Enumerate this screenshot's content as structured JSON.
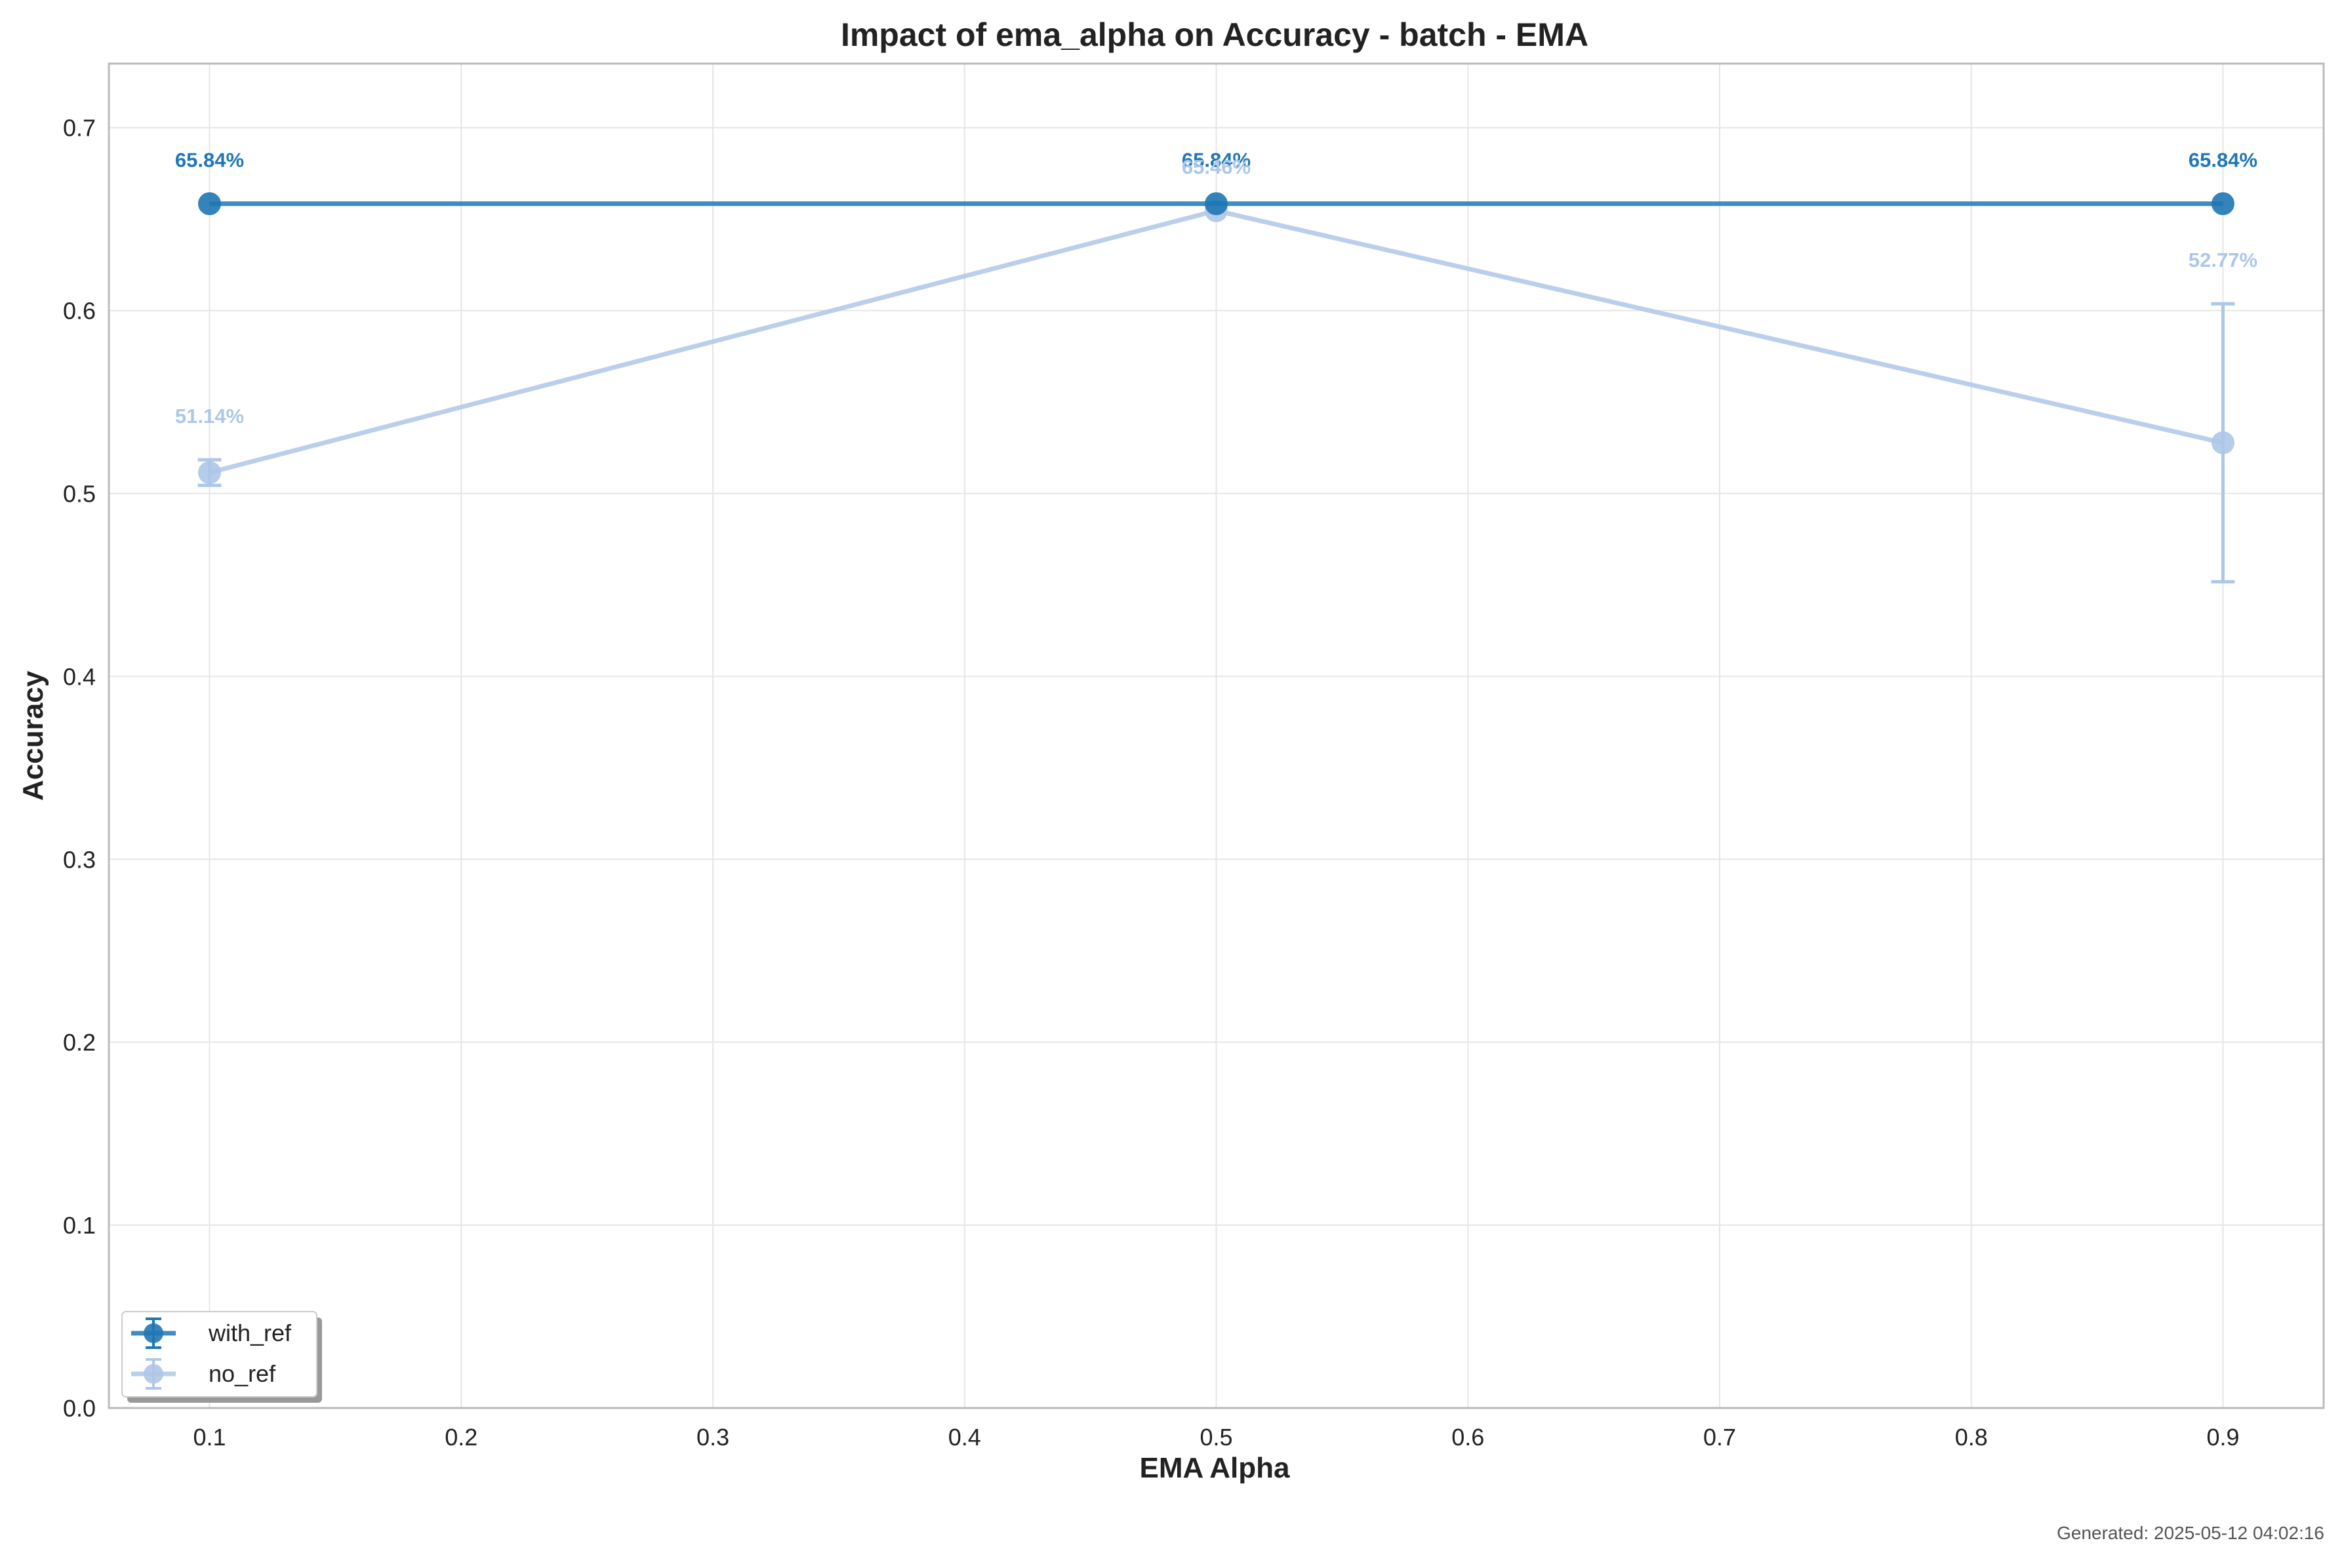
{
  "chart_data": {
    "type": "line",
    "title": "Impact of ema_alpha on Accuracy - batch - EMA",
    "xlabel": "EMA Alpha",
    "ylabel": "Accuracy",
    "x": [
      0.1,
      0.5,
      0.9
    ],
    "xlim": [
      0.06,
      0.94
    ],
    "ylim": [
      0.0,
      0.735
    ],
    "xticks": [
      "0.1",
      "0.2",
      "0.3",
      "0.4",
      "0.5",
      "0.6",
      "0.7",
      "0.8",
      "0.9"
    ],
    "yticks": [
      "0.0",
      "0.1",
      "0.2",
      "0.3",
      "0.4",
      "0.5",
      "0.6",
      "0.7"
    ],
    "grid": true,
    "legend_position": "bottom-left",
    "series": [
      {
        "name": "with_ref",
        "color": "#1f77b4",
        "values": [
          0.6584,
          0.6584,
          0.6584
        ],
        "errors": [
          0.0,
          0.0,
          0.0
        ],
        "labels": [
          "65.84%",
          "65.84%",
          "65.84%"
        ]
      },
      {
        "name": "no_ref",
        "color": "#aec7e8",
        "values": [
          0.5114,
          0.6546,
          0.5277
        ],
        "errors": [
          0.007,
          0.0,
          0.076
        ],
        "labels": [
          "51.14%",
          "65.46%",
          "52.77%"
        ]
      }
    ]
  },
  "footer": {
    "generated": "Generated: 2025-05-12 04:02:16"
  }
}
